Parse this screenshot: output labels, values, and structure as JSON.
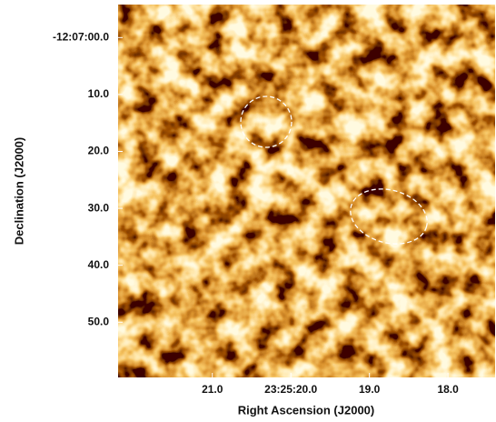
{
  "chart_data": {
    "type": "image",
    "x_label": "Right Ascension (J2000)",
    "y_label": "Declination (J2000)",
    "xlim": [
      22.2,
      17.4
    ],
    "xticks": [
      {
        "value": 21,
        "label": "21.0"
      },
      {
        "value": 20,
        "label": "23:25:20.0"
      },
      {
        "value": 19,
        "label": "19.0"
      },
      {
        "value": 18,
        "label": "18.0"
      }
    ],
    "ylim": [
      -5.8,
      59.7
    ],
    "yticks": [
      {
        "value": 0,
        "label": "-12:07:00.0"
      },
      {
        "value": 10,
        "label": "10.0"
      },
      {
        "value": 20,
        "label": "20.0"
      },
      {
        "value": 30,
        "label": "30.0"
      },
      {
        "value": 40,
        "label": "40.0"
      },
      {
        "value": 50,
        "label": "50.0"
      }
    ]
  }
}
